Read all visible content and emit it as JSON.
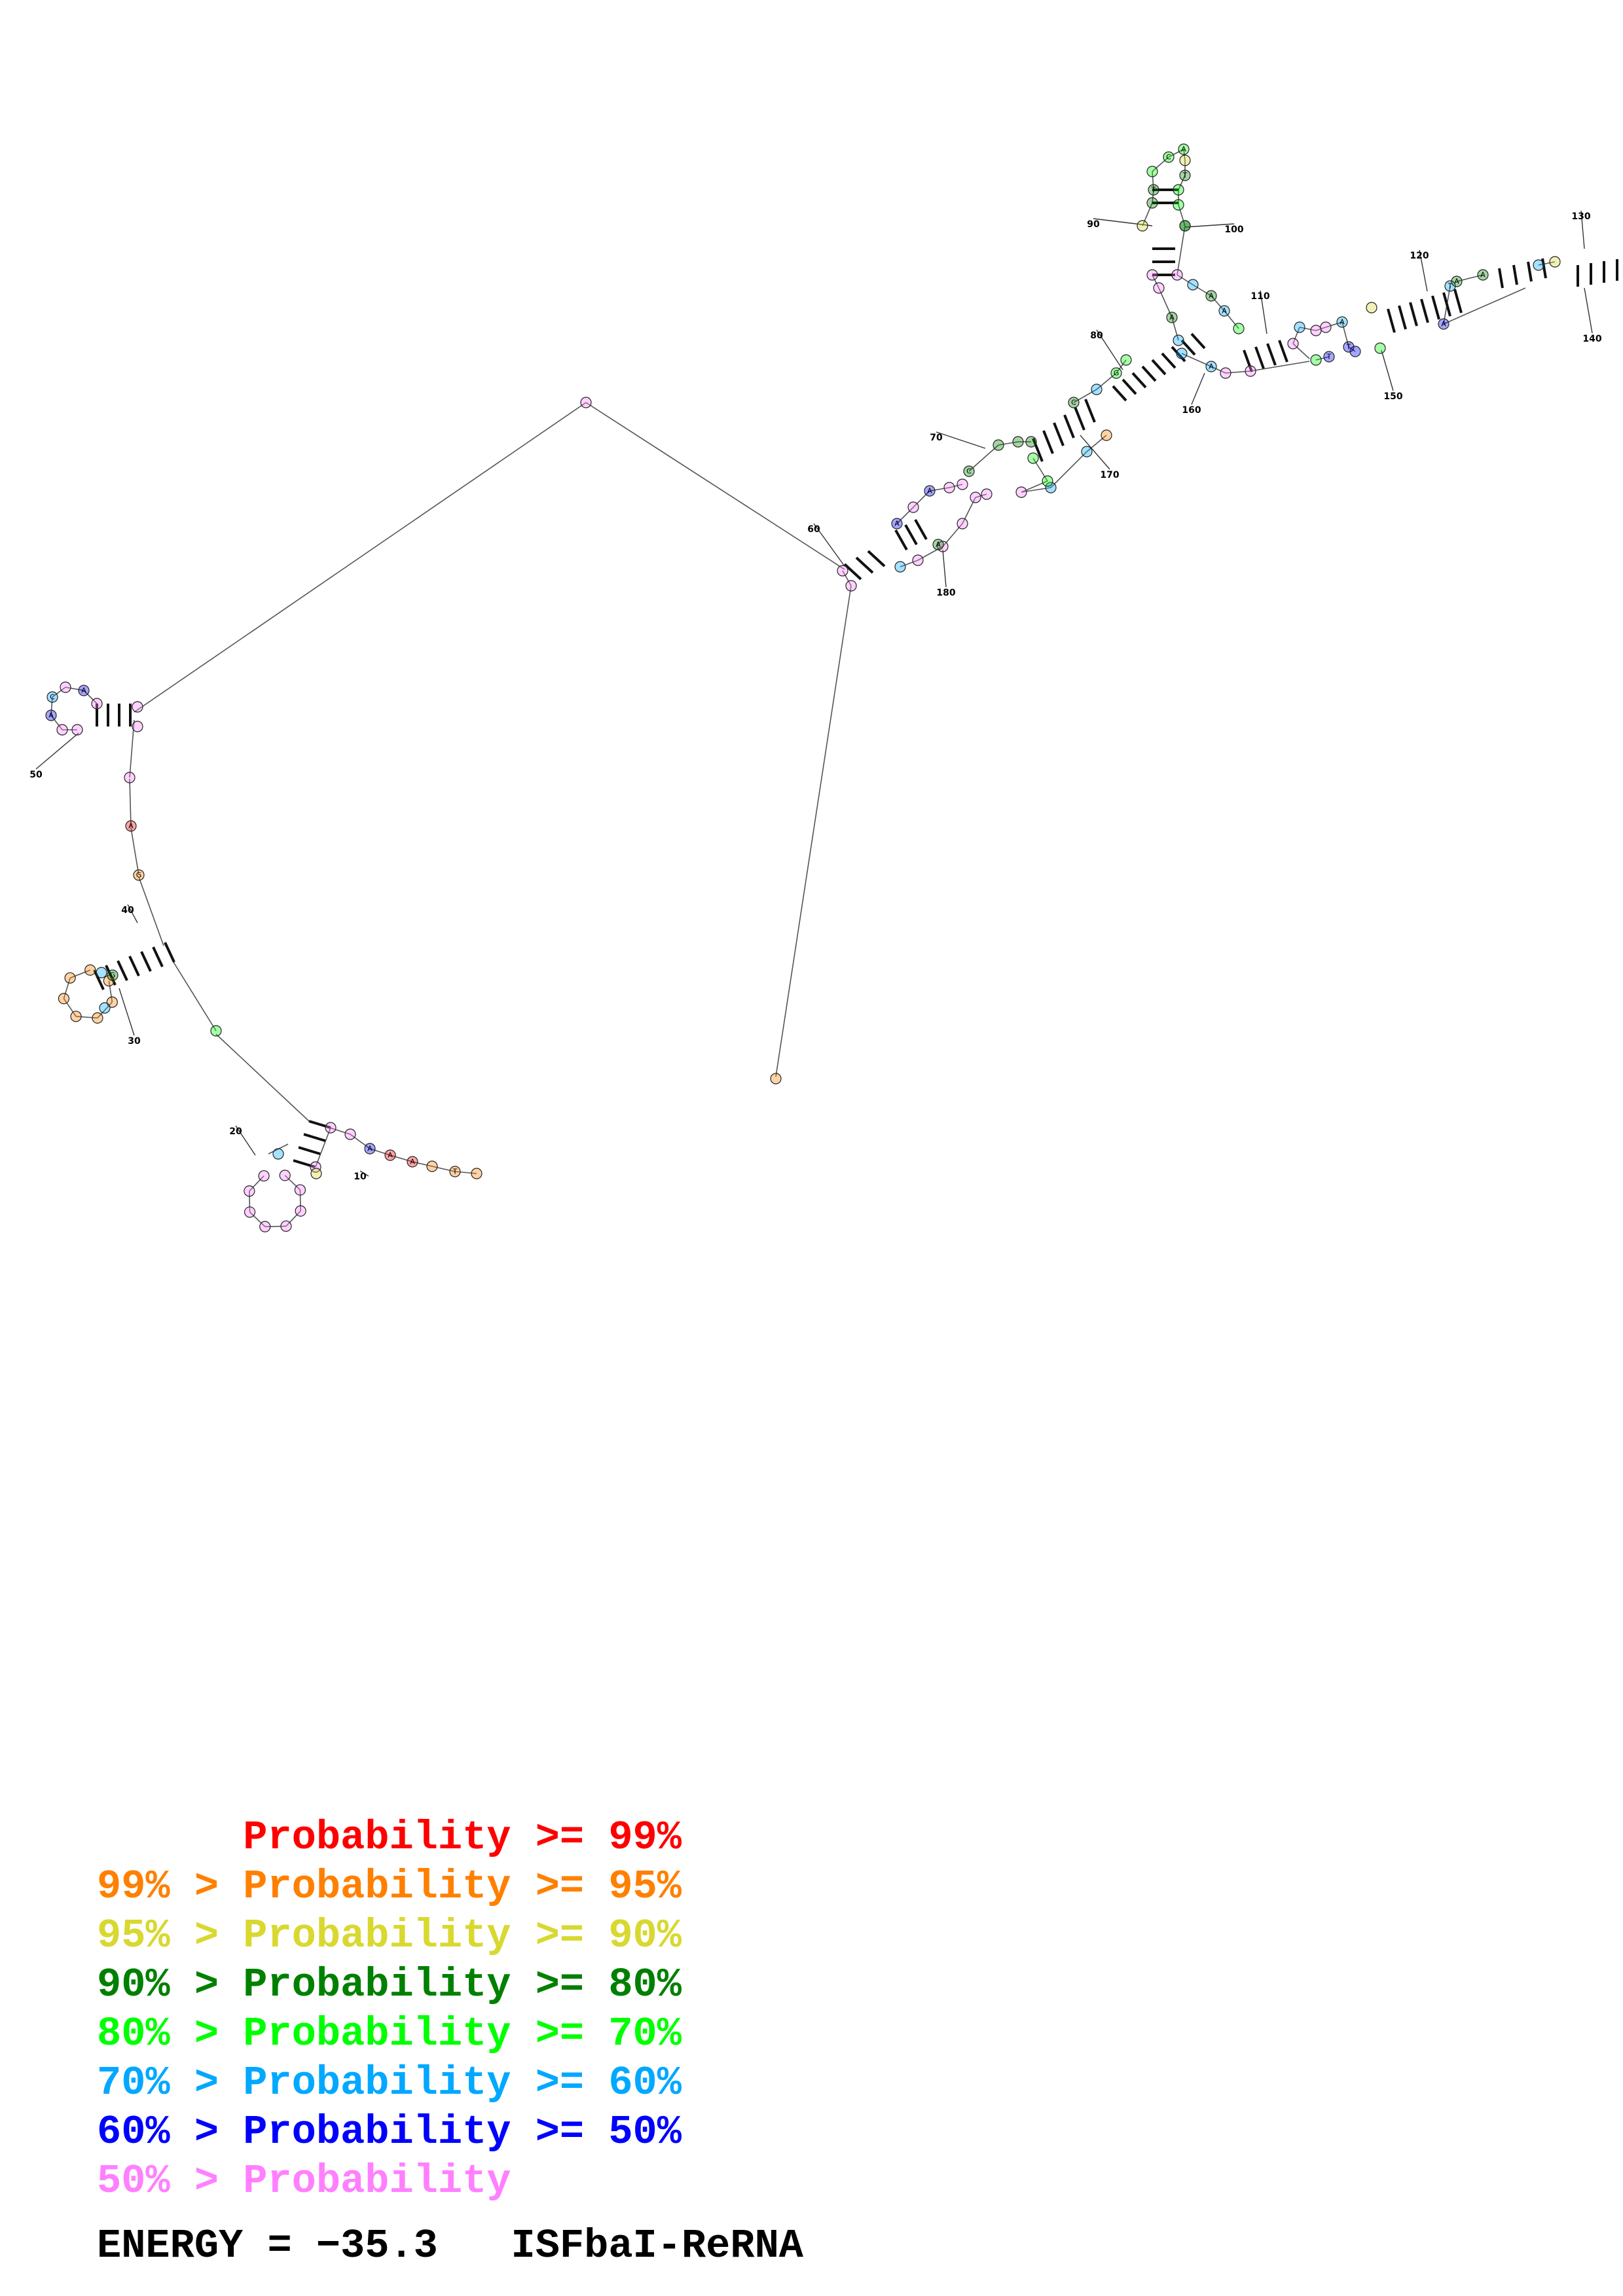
{
  "colors": {
    "p99": "#ff0000",
    "p95": "#ff8000",
    "p90": "#d8d830",
    "p80": "#008000",
    "p70": "#00ff00",
    "p60": "#00a8ff",
    "p50": "#0000ff",
    "plow": "#ff80ff",
    "line": "#555555"
  },
  "position_labels": [
    "10",
    "20",
    "30",
    "40",
    "50",
    "60",
    "70",
    "80",
    "90",
    "100",
    "110",
    "120",
    "130",
    "140",
    "150",
    "160",
    "170",
    "180"
  ],
  "legend": [
    {
      "low": "",
      "sep": "",
      "text": "Probability >= 99%",
      "color_key": "p99"
    },
    {
      "low": "99%",
      "sep": " > ",
      "text": "Probability >= 95%",
      "color_key": "p95"
    },
    {
      "low": "95%",
      "sep": " > ",
      "text": "Probability >= 90%",
      "color_key": "p90"
    },
    {
      "low": "90%",
      "sep": " > ",
      "text": "Probability >= 80%",
      "color_key": "p80"
    },
    {
      "low": "80%",
      "sep": " > ",
      "text": "Probability >= 70%",
      "color_key": "p70"
    },
    {
      "low": "70%",
      "sep": " > ",
      "text": "Probability >= 60%",
      "color_key": "p60"
    },
    {
      "low": "60%",
      "sep": " > ",
      "text": "Probability >= 50%",
      "color_key": "p50"
    },
    {
      "low": "50%",
      "sep": " > ",
      "text": "Probability",
      "color_key": "plow"
    }
  ],
  "energy_text": "ENERGY = −35.3",
  "sequence_name": "ISFbaI-ReRNA"
}
